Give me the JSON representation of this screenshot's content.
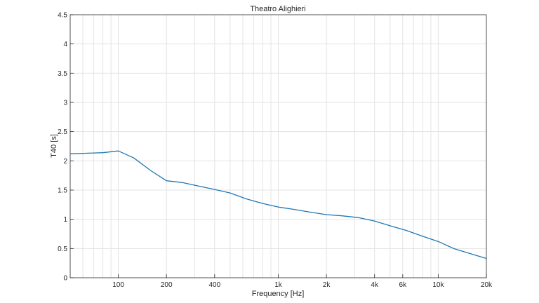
{
  "chart_data": {
    "type": "line",
    "title": "Theatro Alighieri",
    "xlabel": "Frequency [Hz]",
    "ylabel": "T40 [s]",
    "x_scale": "log",
    "xlim": [
      50,
      20000
    ],
    "ylim": [
      0,
      4.5
    ],
    "grid": true,
    "x_ticks": [
      {
        "value": 100,
        "label": "100"
      },
      {
        "value": 200,
        "label": "200"
      },
      {
        "value": 400,
        "label": "400"
      },
      {
        "value": 1000,
        "label": "1k"
      },
      {
        "value": 2000,
        "label": "2k"
      },
      {
        "value": 4000,
        "label": "4k"
      },
      {
        "value": 6000,
        "label": "6k"
      },
      {
        "value": 10000,
        "label": "10k"
      },
      {
        "value": 20000,
        "label": "20k"
      }
    ],
    "y_ticks": [
      {
        "value": 0,
        "label": "0"
      },
      {
        "value": 0.5,
        "label": "0.5"
      },
      {
        "value": 1,
        "label": "1"
      },
      {
        "value": 1.5,
        "label": "1.5"
      },
      {
        "value": 2,
        "label": "2"
      },
      {
        "value": 2.5,
        "label": "2.5"
      },
      {
        "value": 3,
        "label": "3"
      },
      {
        "value": 3.5,
        "label": "3.5"
      },
      {
        "value": 4,
        "label": "4"
      },
      {
        "value": 4.5,
        "label": "4.5"
      }
    ],
    "series": [
      {
        "color": "#1f77b4",
        "x": [
          50,
          63,
          80,
          100,
          125,
          160,
          200,
          250,
          315,
          400,
          500,
          630,
          800,
          1000,
          1250,
          1600,
          2000,
          2500,
          3150,
          4000,
          5000,
          6300,
          8000,
          10000,
          12500,
          16000,
          20000
        ],
        "y": [
          2.12,
          2.13,
          2.14,
          2.17,
          2.05,
          1.83,
          1.66,
          1.63,
          1.57,
          1.51,
          1.45,
          1.35,
          1.27,
          1.21,
          1.17,
          1.12,
          1.08,
          1.06,
          1.03,
          0.97,
          0.89,
          0.81,
          0.71,
          0.62,
          0.5,
          0.41,
          0.33
        ]
      }
    ]
  }
}
